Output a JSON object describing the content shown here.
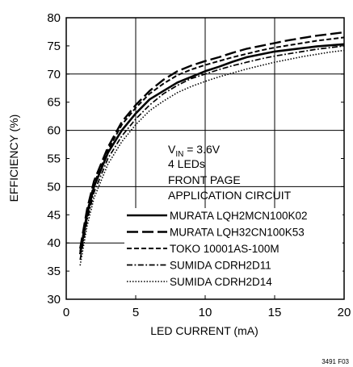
{
  "chart_data": {
    "type": "line",
    "xlabel": "LED CURRENT (mA)",
    "ylabel": "EFFICIENCY (%)",
    "xlim": [
      0,
      20
    ],
    "ylim": [
      30,
      80
    ],
    "x_ticks": [
      "0",
      "5",
      "10",
      "15",
      "20"
    ],
    "y_ticks": [
      "30",
      "35",
      "40",
      "45",
      "50",
      "55",
      "60",
      "65",
      "70",
      "75",
      "80"
    ],
    "grid": true,
    "annotation": {
      "vin_prefix": "V",
      "vin_sub": "IN",
      "vin_suffix": " = 3.6V",
      "line2": "4 LEDs",
      "line3": "FRONT PAGE",
      "line4": "APPLICATION CIRCUIT"
    },
    "figure_ref": "3491 F03",
    "legend_position": "bottom-right",
    "series": [
      {
        "name": "MURATA LQH2MCN100K02",
        "style": "solid",
        "x": [
          1,
          1.5,
          2,
          3,
          4,
          5,
          6,
          7,
          8,
          9,
          10,
          11,
          12,
          13,
          14,
          15,
          16,
          17,
          18,
          19,
          20
        ],
        "y": [
          38,
          45,
          50,
          56,
          60,
          63,
          65.5,
          67,
          68.5,
          69.5,
          70.5,
          71.3,
          72.2,
          73,
          73.5,
          74,
          74.3,
          74.6,
          74.9,
          75.1,
          75.3
        ]
      },
      {
        "name": "MURATA LQH32CN100K53",
        "style": "longdash",
        "x": [
          1,
          1.5,
          2,
          3,
          4,
          5,
          6,
          7,
          8,
          9,
          10,
          11,
          12,
          13,
          14,
          15,
          16,
          17,
          18,
          19,
          20
        ],
        "y": [
          39,
          46,
          51,
          57,
          61.5,
          64.5,
          67,
          69,
          70.5,
          71.5,
          72.3,
          73,
          73.8,
          74.5,
          75,
          75.5,
          76,
          76.4,
          76.8,
          77.1,
          77.4
        ]
      },
      {
        "name": "TOKO 10001AS-100M",
        "style": "dash",
        "x": [
          1,
          1.5,
          2,
          3,
          4,
          5,
          6,
          7,
          8,
          9,
          10,
          11,
          12,
          13,
          14,
          15,
          16,
          17,
          18,
          19,
          20
        ],
        "y": [
          38.5,
          45.5,
          50.5,
          56.5,
          61,
          64,
          66.5,
          68.3,
          69.8,
          70.8,
          71.6,
          72.3,
          73,
          73.6,
          74.2,
          74.7,
          75.1,
          75.5,
          75.9,
          76.2,
          76.5
        ]
      },
      {
        "name": "SUMIDA CDRH2D11",
        "style": "dashdot",
        "x": [
          1,
          1.5,
          2,
          3,
          4,
          5,
          6,
          7,
          8,
          9,
          10,
          11,
          12,
          13,
          14,
          15,
          16,
          17,
          18,
          19,
          20
        ],
        "y": [
          37,
          44,
          49,
          55,
          59,
          62,
          64.5,
          66.5,
          68,
          69.2,
          70,
          70.8,
          71.5,
          72.1,
          72.7,
          73.2,
          73.6,
          74,
          74.4,
          74.7,
          75
        ]
      },
      {
        "name": "SUMIDA CDRH2D14",
        "style": "dotted",
        "x": [
          1,
          1.5,
          2,
          3,
          4,
          5,
          6,
          7,
          8,
          9,
          10,
          11,
          12,
          13,
          14,
          15,
          16,
          17,
          18,
          19,
          20
        ],
        "y": [
          36,
          43,
          48,
          54,
          58,
          61,
          63.5,
          65.2,
          66.7,
          67.8,
          68.7,
          69.5,
          70.2,
          70.9,
          71.5,
          72.1,
          72.6,
          73.1,
          73.5,
          73.9,
          74.2
        ]
      }
    ]
  }
}
